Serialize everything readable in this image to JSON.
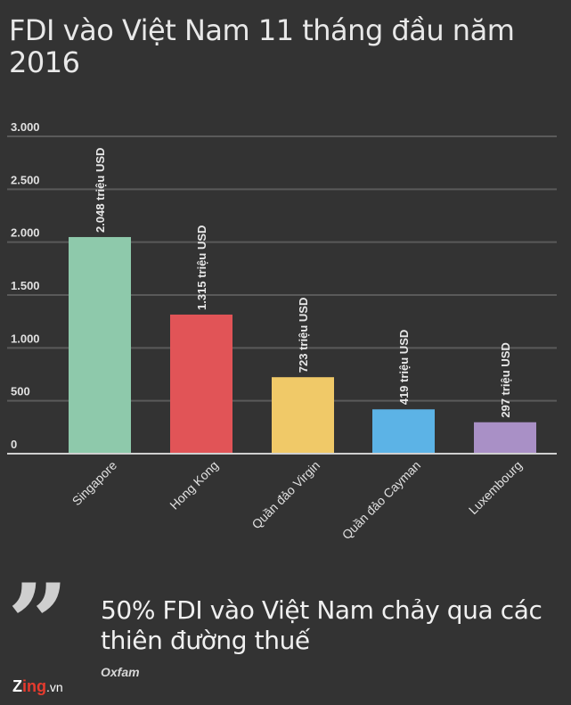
{
  "title": "FDI vào Việt Nam 11 tháng đầu năm 2016",
  "chart_data": {
    "type": "bar",
    "title": "FDI vào Việt Nam 11 tháng đầu năm 2016",
    "categories": [
      "Singapore",
      "Hong Kong",
      "Quần đảo Virgin",
      "Quần đảo Cayman",
      "Luxembourg"
    ],
    "values": [
      2048,
      1315,
      723,
      419,
      297
    ],
    "data_labels": [
      "2.048 triệu USD",
      "1.315 triệu USD",
      "723 triệu USD",
      "419 triệu USD",
      "297 triệu USD"
    ],
    "colors": [
      "#8ec9ab",
      "#e15457",
      "#f0c968",
      "#5cb3e6",
      "#a990c6"
    ],
    "ylim": [
      0,
      3000
    ],
    "yticks": [
      0,
      500,
      1000,
      1500,
      2000,
      2500,
      3000
    ],
    "ytick_labels": [
      "0",
      "500",
      "1.000",
      "1.500",
      "2.000",
      "2.500",
      "3.000"
    ],
    "xlabel": "",
    "ylabel": "",
    "grid": true,
    "gridline_color": "#5a5a5a"
  },
  "quote": {
    "mark": "”",
    "text": "50% FDI vào Việt Nam chảy qua các thiên đường thuế",
    "source": "Oxfam"
  },
  "brand": {
    "part1": "Z",
    "part2": "ing",
    "part3": ".vn"
  }
}
